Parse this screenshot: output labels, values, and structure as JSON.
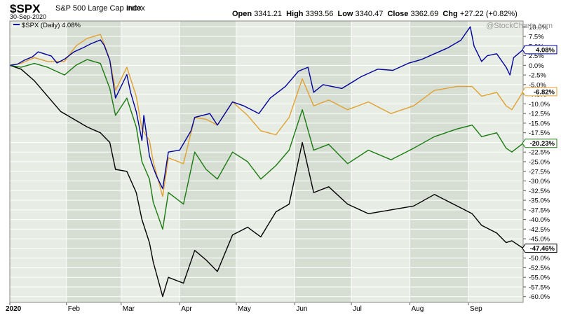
{
  "header": {
    "symbol": "$SPX",
    "name": "S&P 500 Large Cap Index",
    "exchange": "INDX",
    "date": "30-Sep-2020",
    "open_label": "Open",
    "open": "3341.21",
    "high_label": "High",
    "high": "3393.56",
    "low_label": "Low",
    "low": "3340.47",
    "close_label": "Close",
    "close": "3362.69",
    "chg_label": "Chg",
    "chg": "+27.22 (+0.82%)"
  },
  "watermark": "@StockCharts.com",
  "chart_data": {
    "type": "line",
    "title": "",
    "xlabel": "",
    "ylabel": "",
    "y_axis_side": "right",
    "ylim": [
      -61.5,
      11.5
    ],
    "y_ticks": [
      "10.0%",
      "7.5%",
      "5.0%",
      "2.5%",
      "0.0%",
      "-2.5%",
      "-5.0%",
      "-7.5%",
      "-10.0%",
      "-12.5%",
      "-15.0%",
      "-17.5%",
      "-20.0%",
      "-22.5%",
      "-25.0%",
      "-27.5%",
      "-30.0%",
      "-32.5%",
      "-35.0%",
      "-37.5%",
      "-40.0%",
      "-42.5%",
      "-45.0%",
      "-47.5%",
      "-50.0%",
      "-52.5%",
      "-55.0%",
      "-57.5%",
      "-60.0%"
    ],
    "x_ticks": [
      {
        "label": "2020",
        "date": "2020-01-02",
        "bold": true
      },
      {
        "label": "Feb",
        "date": "2020-02-01"
      },
      {
        "label": "Mar",
        "date": "2020-03-01"
      },
      {
        "label": "Apr",
        "date": "2020-04-01"
      },
      {
        "label": "May",
        "date": "2020-05-01"
      },
      {
        "label": "Jun",
        "date": "2020-06-01"
      },
      {
        "label": "Jul",
        "date": "2020-07-01"
      },
      {
        "label": "Aug",
        "date": "2020-08-01"
      },
      {
        "label": "Sep",
        "date": "2020-09-01"
      }
    ],
    "x_range": [
      "2020-01-02",
      "2020-09-30"
    ],
    "shaded_bands": [
      [
        "2020-02-01",
        "2020-03-01"
      ],
      [
        "2020-04-01",
        "2020-05-01"
      ],
      [
        "2020-06-01",
        "2020-07-01"
      ],
      [
        "2020-08-01",
        "2020-09-01"
      ]
    ],
    "legend": {
      "placement": "top-left",
      "entries": [
        {
          "label": "$SPX (Daily) 4.08%",
          "color": "#000099"
        }
      ]
    },
    "colors": {
      "background": "#e7ede4",
      "band": "#d6ded3",
      "grid": "#ffffff"
    },
    "grid": true,
    "series": [
      {
        "name": "$SPX (Daily) 4.08%",
        "end_label": "4.08%",
        "color": "#000099",
        "label_bg": "#ffffff",
        "points": [
          [
            "2020-01-02",
            0.0
          ],
          [
            "2020-01-06",
            0.3
          ],
          [
            "2020-01-10",
            1.4
          ],
          [
            "2020-01-14",
            2.2
          ],
          [
            "2020-01-17",
            3.5
          ],
          [
            "2020-01-24",
            2.4
          ],
          [
            "2020-01-27",
            0.6
          ],
          [
            "2020-01-31",
            1.6
          ],
          [
            "2020-02-05",
            3.5
          ],
          [
            "2020-02-10",
            4.6
          ],
          [
            "2020-02-14",
            5.6
          ],
          [
            "2020-02-19",
            6.6
          ],
          [
            "2020-02-21",
            5.2
          ],
          [
            "2020-02-24",
            1.3
          ],
          [
            "2020-02-27",
            -8.5
          ],
          [
            "2020-03-04",
            -2.4
          ],
          [
            "2020-03-06",
            -7.0
          ],
          [
            "2020-03-09",
            -12.0
          ],
          [
            "2020-03-12",
            -19.5
          ],
          [
            "2020-03-13",
            -13.0
          ],
          [
            "2020-03-16",
            -23.5
          ],
          [
            "2020-03-18",
            -26.5
          ],
          [
            "2020-03-20",
            -29.0
          ],
          [
            "2020-03-23",
            -32.0
          ],
          [
            "2020-03-26",
            -22.5
          ],
          [
            "2020-04-01",
            -22.0
          ],
          [
            "2020-04-07",
            -17.0
          ],
          [
            "2020-04-09",
            -13.5
          ],
          [
            "2020-04-17",
            -12.5
          ],
          [
            "2020-04-21",
            -15.5
          ],
          [
            "2020-04-29",
            -9.5
          ],
          [
            "2020-05-05",
            -10.5
          ],
          [
            "2020-05-13",
            -12.5
          ],
          [
            "2020-05-19",
            -8.5
          ],
          [
            "2020-05-27",
            -5.5
          ],
          [
            "2020-06-03",
            -1.5
          ],
          [
            "2020-06-08",
            -0.5
          ],
          [
            "2020-06-11",
            -7.0
          ],
          [
            "2020-06-16",
            -5.0
          ],
          [
            "2020-06-26",
            -6.0
          ],
          [
            "2020-07-06",
            -3.0
          ],
          [
            "2020-07-15",
            -1.0
          ],
          [
            "2020-07-23",
            -1.3
          ],
          [
            "2020-07-31",
            0.5
          ],
          [
            "2020-08-07",
            1.5
          ],
          [
            "2020-08-14",
            3.0
          ],
          [
            "2020-08-21",
            4.5
          ],
          [
            "2020-08-28",
            6.5
          ],
          [
            "2020-09-02",
            10.0
          ],
          [
            "2020-09-04",
            5.0
          ],
          [
            "2020-09-08",
            1.0
          ],
          [
            "2020-09-11",
            2.5
          ],
          [
            "2020-09-16",
            3.0
          ],
          [
            "2020-09-21",
            -0.5
          ],
          [
            "2020-09-23",
            -2.5
          ],
          [
            "2020-09-25",
            2.0
          ],
          [
            "2020-09-30",
            4.08
          ]
        ]
      },
      {
        "name": "",
        "end_label": "-6.82%",
        "color": "#e0a030",
        "label_bg": "#ffffff",
        "points": [
          [
            "2020-01-02",
            0.0
          ],
          [
            "2020-01-08",
            0.5
          ],
          [
            "2020-01-15",
            2.0
          ],
          [
            "2020-01-22",
            1.0
          ],
          [
            "2020-01-31",
            1.0
          ],
          [
            "2020-02-06",
            5.0
          ],
          [
            "2020-02-12",
            7.0
          ],
          [
            "2020-02-19",
            8.0
          ],
          [
            "2020-02-21",
            5.5
          ],
          [
            "2020-02-24",
            1.5
          ],
          [
            "2020-02-27",
            -6.5
          ],
          [
            "2020-03-04",
            -0.5
          ],
          [
            "2020-03-09",
            -8.0
          ],
          [
            "2020-03-12",
            -16.5
          ],
          [
            "2020-03-16",
            -19.5
          ],
          [
            "2020-03-18",
            -25.0
          ],
          [
            "2020-03-23",
            -34.0
          ],
          [
            "2020-03-26",
            -24.0
          ],
          [
            "2020-04-03",
            -25.5
          ],
          [
            "2020-04-09",
            -13.5
          ],
          [
            "2020-04-15",
            -14.0
          ],
          [
            "2020-04-21",
            -15.5
          ],
          [
            "2020-04-29",
            -9.5
          ],
          [
            "2020-05-07",
            -13.0
          ],
          [
            "2020-05-14",
            -17.0
          ],
          [
            "2020-05-22",
            -18.0
          ],
          [
            "2020-05-29",
            -13.5
          ],
          [
            "2020-06-05",
            -3.5
          ],
          [
            "2020-06-11",
            -10.5
          ],
          [
            "2020-06-19",
            -9.0
          ],
          [
            "2020-06-29",
            -11.5
          ],
          [
            "2020-07-10",
            -9.5
          ],
          [
            "2020-07-22",
            -12.5
          ],
          [
            "2020-08-03",
            -10.5
          ],
          [
            "2020-08-14",
            -6.5
          ],
          [
            "2020-08-26",
            -5.5
          ],
          [
            "2020-09-03",
            -5.5
          ],
          [
            "2020-09-08",
            -8.0
          ],
          [
            "2020-09-16",
            -7.0
          ],
          [
            "2020-09-21",
            -10.5
          ],
          [
            "2020-09-24",
            -11.5
          ],
          [
            "2020-09-30",
            -6.82
          ]
        ]
      },
      {
        "name": "",
        "end_label": "-20.23%",
        "color": "#1a7a10",
        "label_bg": "#ffffff",
        "points": [
          [
            "2020-01-02",
            0.0
          ],
          [
            "2020-01-08",
            -0.5
          ],
          [
            "2020-01-15",
            0.5
          ],
          [
            "2020-01-22",
            -0.5
          ],
          [
            "2020-01-31",
            -2.5
          ],
          [
            "2020-02-06",
            0.0
          ],
          [
            "2020-02-12",
            1.5
          ],
          [
            "2020-02-19",
            0.5
          ],
          [
            "2020-02-24",
            -6.0
          ],
          [
            "2020-02-27",
            -13.0
          ],
          [
            "2020-03-04",
            -8.5
          ],
          [
            "2020-03-09",
            -16.0
          ],
          [
            "2020-03-12",
            -25.0
          ],
          [
            "2020-03-16",
            -29.5
          ],
          [
            "2020-03-18",
            -35.5
          ],
          [
            "2020-03-23",
            -42.5
          ],
          [
            "2020-03-26",
            -33.0
          ],
          [
            "2020-04-03",
            -36.0
          ],
          [
            "2020-04-09",
            -22.5
          ],
          [
            "2020-04-15",
            -27.0
          ],
          [
            "2020-04-21",
            -29.5
          ],
          [
            "2020-04-29",
            -22.5
          ],
          [
            "2020-05-07",
            -25.0
          ],
          [
            "2020-05-14",
            -29.5
          ],
          [
            "2020-05-22",
            -26.0
          ],
          [
            "2020-05-29",
            -22.0
          ],
          [
            "2020-06-05",
            -11.5
          ],
          [
            "2020-06-11",
            -22.0
          ],
          [
            "2020-06-19",
            -20.5
          ],
          [
            "2020-06-29",
            -25.5
          ],
          [
            "2020-07-10",
            -22.0
          ],
          [
            "2020-07-22",
            -24.5
          ],
          [
            "2020-08-03",
            -21.5
          ],
          [
            "2020-08-14",
            -18.5
          ],
          [
            "2020-08-26",
            -16.5
          ],
          [
            "2020-09-03",
            -15.5
          ],
          [
            "2020-09-08",
            -18.5
          ],
          [
            "2020-09-16",
            -17.5
          ],
          [
            "2020-09-21",
            -21.5
          ],
          [
            "2020-09-24",
            -22.5
          ],
          [
            "2020-09-30",
            -20.23
          ]
        ]
      },
      {
        "name": "",
        "end_label": "-47.46%",
        "color": "#000000",
        "label_bg": "#ffffff",
        "points": [
          [
            "2020-01-02",
            0.0
          ],
          [
            "2020-01-08",
            -1.0
          ],
          [
            "2020-01-15",
            -4.0
          ],
          [
            "2020-01-22",
            -8.0
          ],
          [
            "2020-01-29",
            -12.0
          ],
          [
            "2020-02-05",
            -14.0
          ],
          [
            "2020-02-12",
            -16.0
          ],
          [
            "2020-02-19",
            -17.5
          ],
          [
            "2020-02-24",
            -20.0
          ],
          [
            "2020-02-27",
            -27.0
          ],
          [
            "2020-03-04",
            -27.5
          ],
          [
            "2020-03-09",
            -33.0
          ],
          [
            "2020-03-12",
            -40.0
          ],
          [
            "2020-03-16",
            -46.0
          ],
          [
            "2020-03-18",
            -51.0
          ],
          [
            "2020-03-23",
            -60.0
          ],
          [
            "2020-03-26",
            -55.0
          ],
          [
            "2020-04-03",
            -56.5
          ],
          [
            "2020-04-09",
            -48.0
          ],
          [
            "2020-04-15",
            -50.5
          ],
          [
            "2020-04-21",
            -53.5
          ],
          [
            "2020-04-29",
            -44.0
          ],
          [
            "2020-05-07",
            -42.0
          ],
          [
            "2020-05-14",
            -44.5
          ],
          [
            "2020-05-22",
            -38.0
          ],
          [
            "2020-05-29",
            -36.0
          ],
          [
            "2020-06-05",
            -20.0
          ],
          [
            "2020-06-11",
            -33.0
          ],
          [
            "2020-06-19",
            -31.5
          ],
          [
            "2020-06-29",
            -36.0
          ],
          [
            "2020-07-10",
            -38.5
          ],
          [
            "2020-07-22",
            -37.5
          ],
          [
            "2020-08-03",
            -36.5
          ],
          [
            "2020-08-14",
            -33.5
          ],
          [
            "2020-08-26",
            -36.5
          ],
          [
            "2020-09-03",
            -38.5
          ],
          [
            "2020-09-08",
            -41.5
          ],
          [
            "2020-09-16",
            -43.5
          ],
          [
            "2020-09-21",
            -46.0
          ],
          [
            "2020-09-24",
            -45.5
          ],
          [
            "2020-09-30",
            -47.46
          ]
        ]
      }
    ]
  }
}
